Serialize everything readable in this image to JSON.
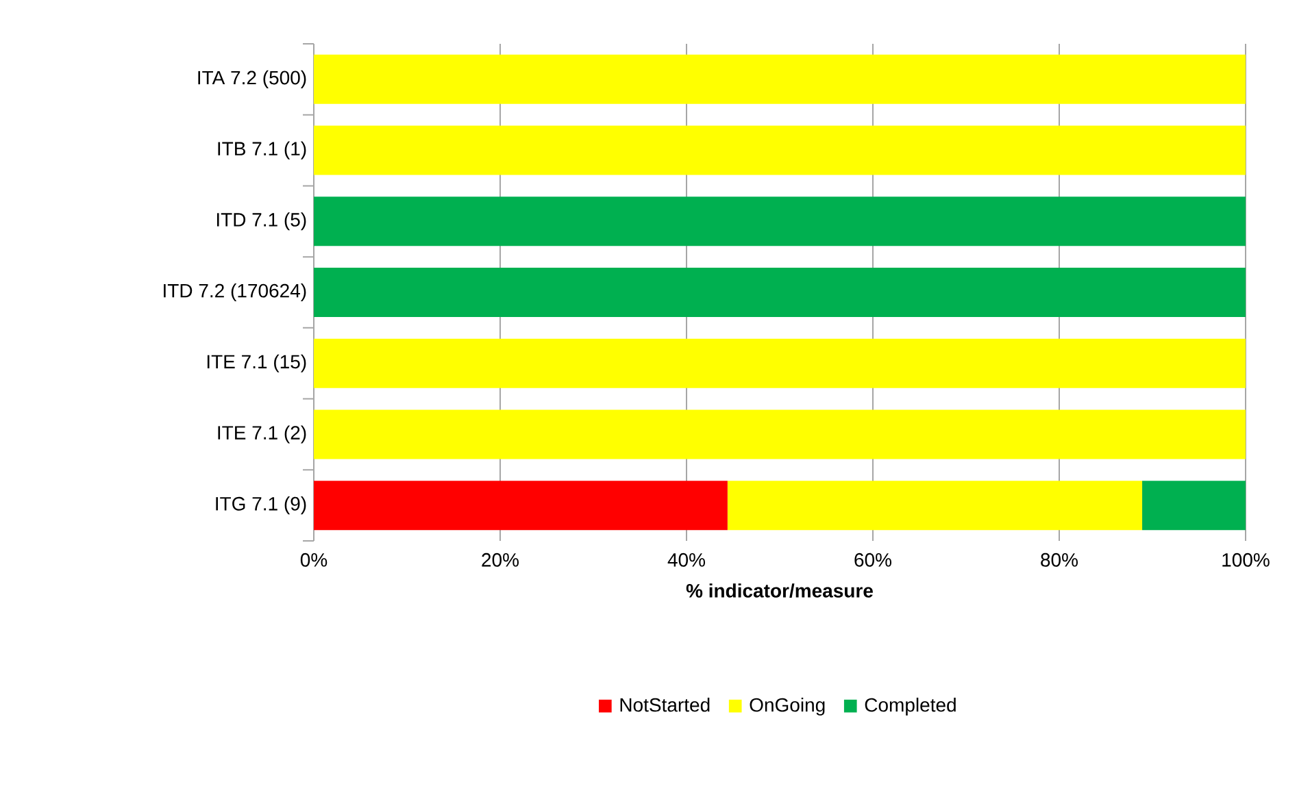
{
  "chart_data": {
    "type": "bar",
    "orientation": "horizontal",
    "stacked": true,
    "categories": [
      "ITA 7.2 (500)",
      "ITB 7.1 (1)",
      "ITD 7.1 (5)",
      "ITD 7.2 (170624)",
      "ITE 7.1 (15)",
      "ITE 7.1 (2)",
      "ITG 7.1 (9)"
    ],
    "series": [
      {
        "name": "NotStarted",
        "color": "#ff0000",
        "values": [
          0,
          0,
          0,
          0,
          0,
          0,
          44.4
        ]
      },
      {
        "name": "OnGoing",
        "color": "#ffff00",
        "values": [
          100,
          100,
          0,
          0,
          100,
          100,
          44.5
        ]
      },
      {
        "name": "Completed",
        "color": "#00b050",
        "values": [
          0,
          0,
          100,
          100,
          0,
          0,
          11.1
        ]
      }
    ],
    "xlabel": "% indicator/measure",
    "xlim": [
      0,
      100
    ],
    "xticks": [
      {
        "value": 0,
        "label": "0%"
      },
      {
        "value": 20,
        "label": "20%"
      },
      {
        "value": 40,
        "label": "40%"
      },
      {
        "value": 60,
        "label": "60%"
      },
      {
        "value": 80,
        "label": "80%"
      },
      {
        "value": 100,
        "label": "100%"
      }
    ],
    "grid": "x",
    "legend": "bottom"
  }
}
